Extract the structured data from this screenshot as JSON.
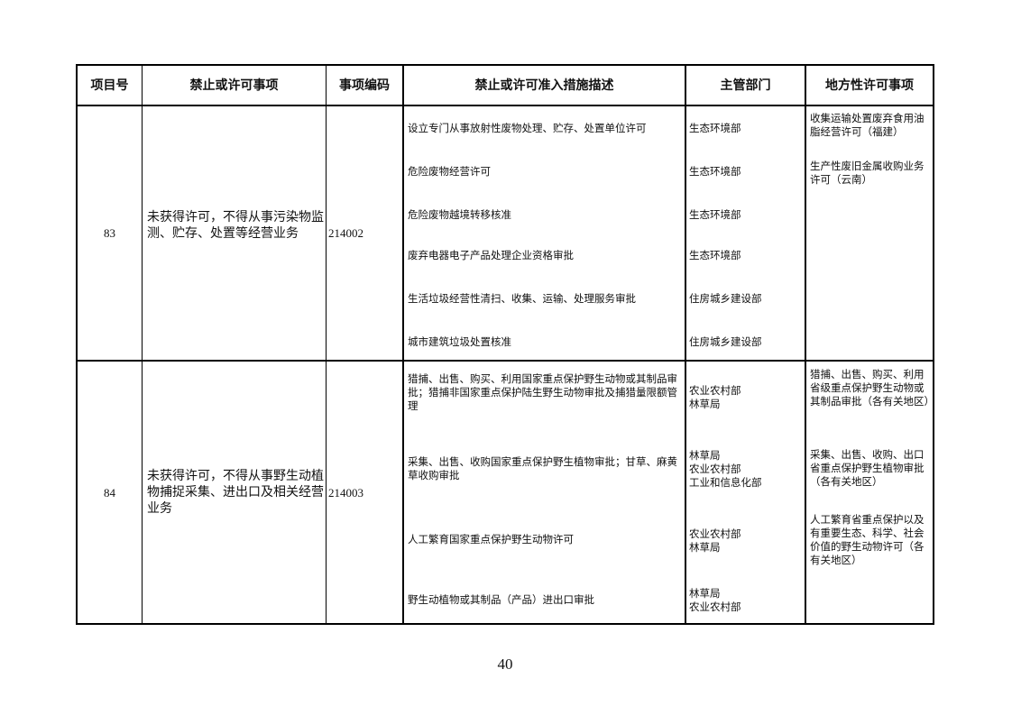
{
  "table": {
    "headers": [
      "项目号",
      "禁止或许可事项",
      "事项编码",
      "禁止或许可准入措施描述",
      "主管部门",
      "地方性许可事项"
    ],
    "rows": [
      {
        "id": "83",
        "item": "未获得许可，不得从事污染物监测、贮存、处置等经营业务",
        "code": "214002",
        "measures": [
          {
            "desc": "设立专门从事放射性废物处理、贮存、处置单位许可",
            "dept": "生态环境部"
          },
          {
            "desc": "危险废物经营许可",
            "dept": "生态环境部"
          },
          {
            "desc": "危险废物越境转移核准",
            "dept": "生态环境部"
          },
          {
            "desc": "废弃电器电子产品处理企业资格审批",
            "dept": "生态环境部"
          },
          {
            "desc": "生活垃圾经营性清扫、收集、运输、处理服务审批",
            "dept": "住房城乡建设部"
          },
          {
            "desc": "城市建筑垃圾处置核准",
            "dept": "住房城乡建设部"
          }
        ],
        "local": [
          "收集运输处置废弃食用油脂经营许可（福建）",
          "生产性废旧金属收购业务许可（云南）"
        ]
      },
      {
        "id": "84",
        "item": "未获得许可，不得从事野生动植物捕捉采集、进出口及相关经营业务",
        "code": "214003",
        "measures": [
          {
            "desc": "猎捕、出售、购买、利用国家重点保护野生动物或其制品审批；猎捕非国家重点保护陆生野生动物审批及捕猎量限额管理",
            "dept": "农业农村部\n林草局"
          },
          {
            "desc": "采集、出售、收购国家重点保护野生植物审批；甘草、麻黄草收购审批",
            "dept": "林草局\n农业农村部\n工业和信息化部"
          },
          {
            "desc": "人工繁育国家重点保护野生动物许可",
            "dept": "农业农村部\n林草局"
          },
          {
            "desc": "野生动植物或其制品（产品）进出口审批",
            "dept": "林草局\n农业农村部"
          }
        ],
        "local": [
          "猎捕、出售、购买、利用省级重点保护野生动物或其制品审批（各有关地区）",
          "采集、出售、收购、出口省重点保护野生植物审批（各有关地区）",
          "人工繁育省重点保护以及有重要生态、科学、社会价值的野生动物许可（各有关地区）"
        ]
      }
    ]
  },
  "page_number": "40"
}
